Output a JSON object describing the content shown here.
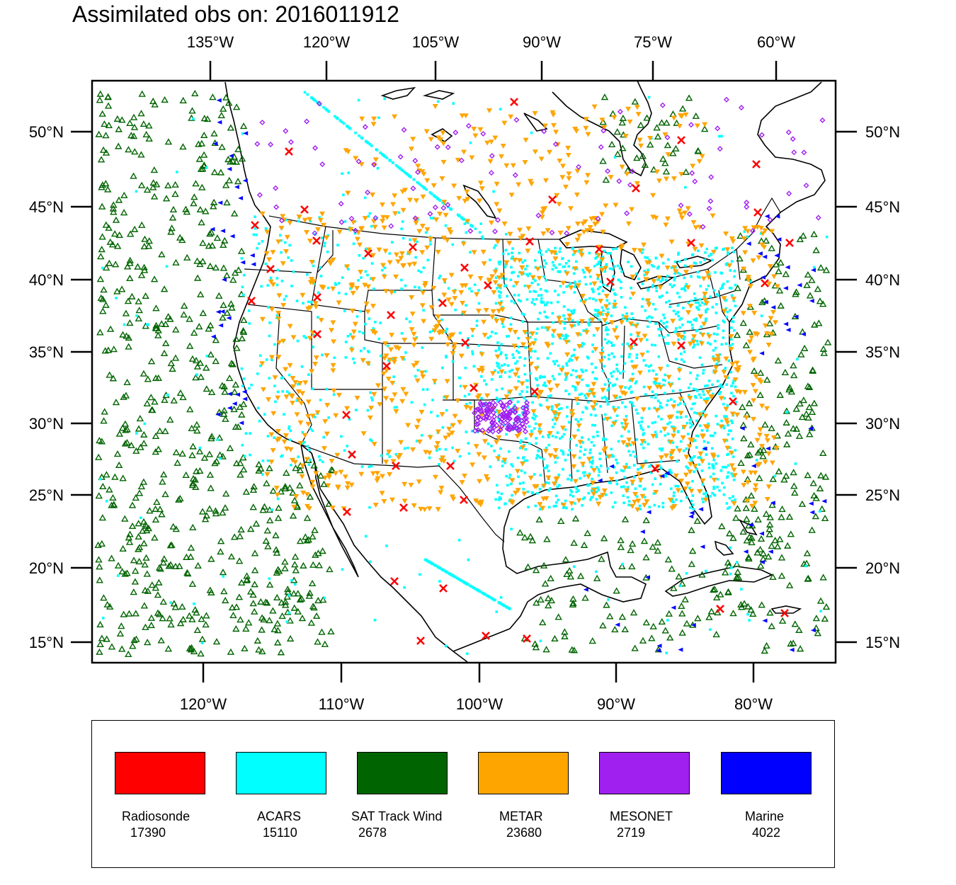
{
  "title": "Assimilated obs on: 2016011912",
  "map": {
    "top_lon_labels": [
      "135°W",
      "120°W",
      "105°W",
      "90°W",
      "75°W",
      "60°W"
    ],
    "bottom_lon_labels": [
      "120°W",
      "110°W",
      "100°W",
      "90°W",
      "80°W"
    ],
    "lat_labels": [
      "50°N",
      "45°N",
      "40°N",
      "35°N",
      "30°N",
      "25°N",
      "20°N",
      "15°N"
    ],
    "lon_range": [
      -128,
      -74
    ],
    "lat_range": [
      14,
      54
    ]
  },
  "legend": [
    {
      "name": "Radiosonde",
      "count": "17390",
      "color": "#ff0000",
      "marker": "x-mark"
    },
    {
      "name": "ACARS",
      "count": "15110",
      "color": "#00ffff",
      "marker": "dot"
    },
    {
      "name": "SAT Track Wind",
      "count": "2678",
      "color": "#006400",
      "marker": "triangle-up"
    },
    {
      "name": "METAR",
      "count": "23680",
      "color": "#ffa500",
      "marker": "triangle-down"
    },
    {
      "name": "MESONET",
      "count": "2719",
      "color": "#a020f0",
      "marker": "diamond"
    },
    {
      "name": "Marine",
      "count": "4022",
      "color": "#0000ff",
      "marker": "triangle-left"
    }
  ]
}
